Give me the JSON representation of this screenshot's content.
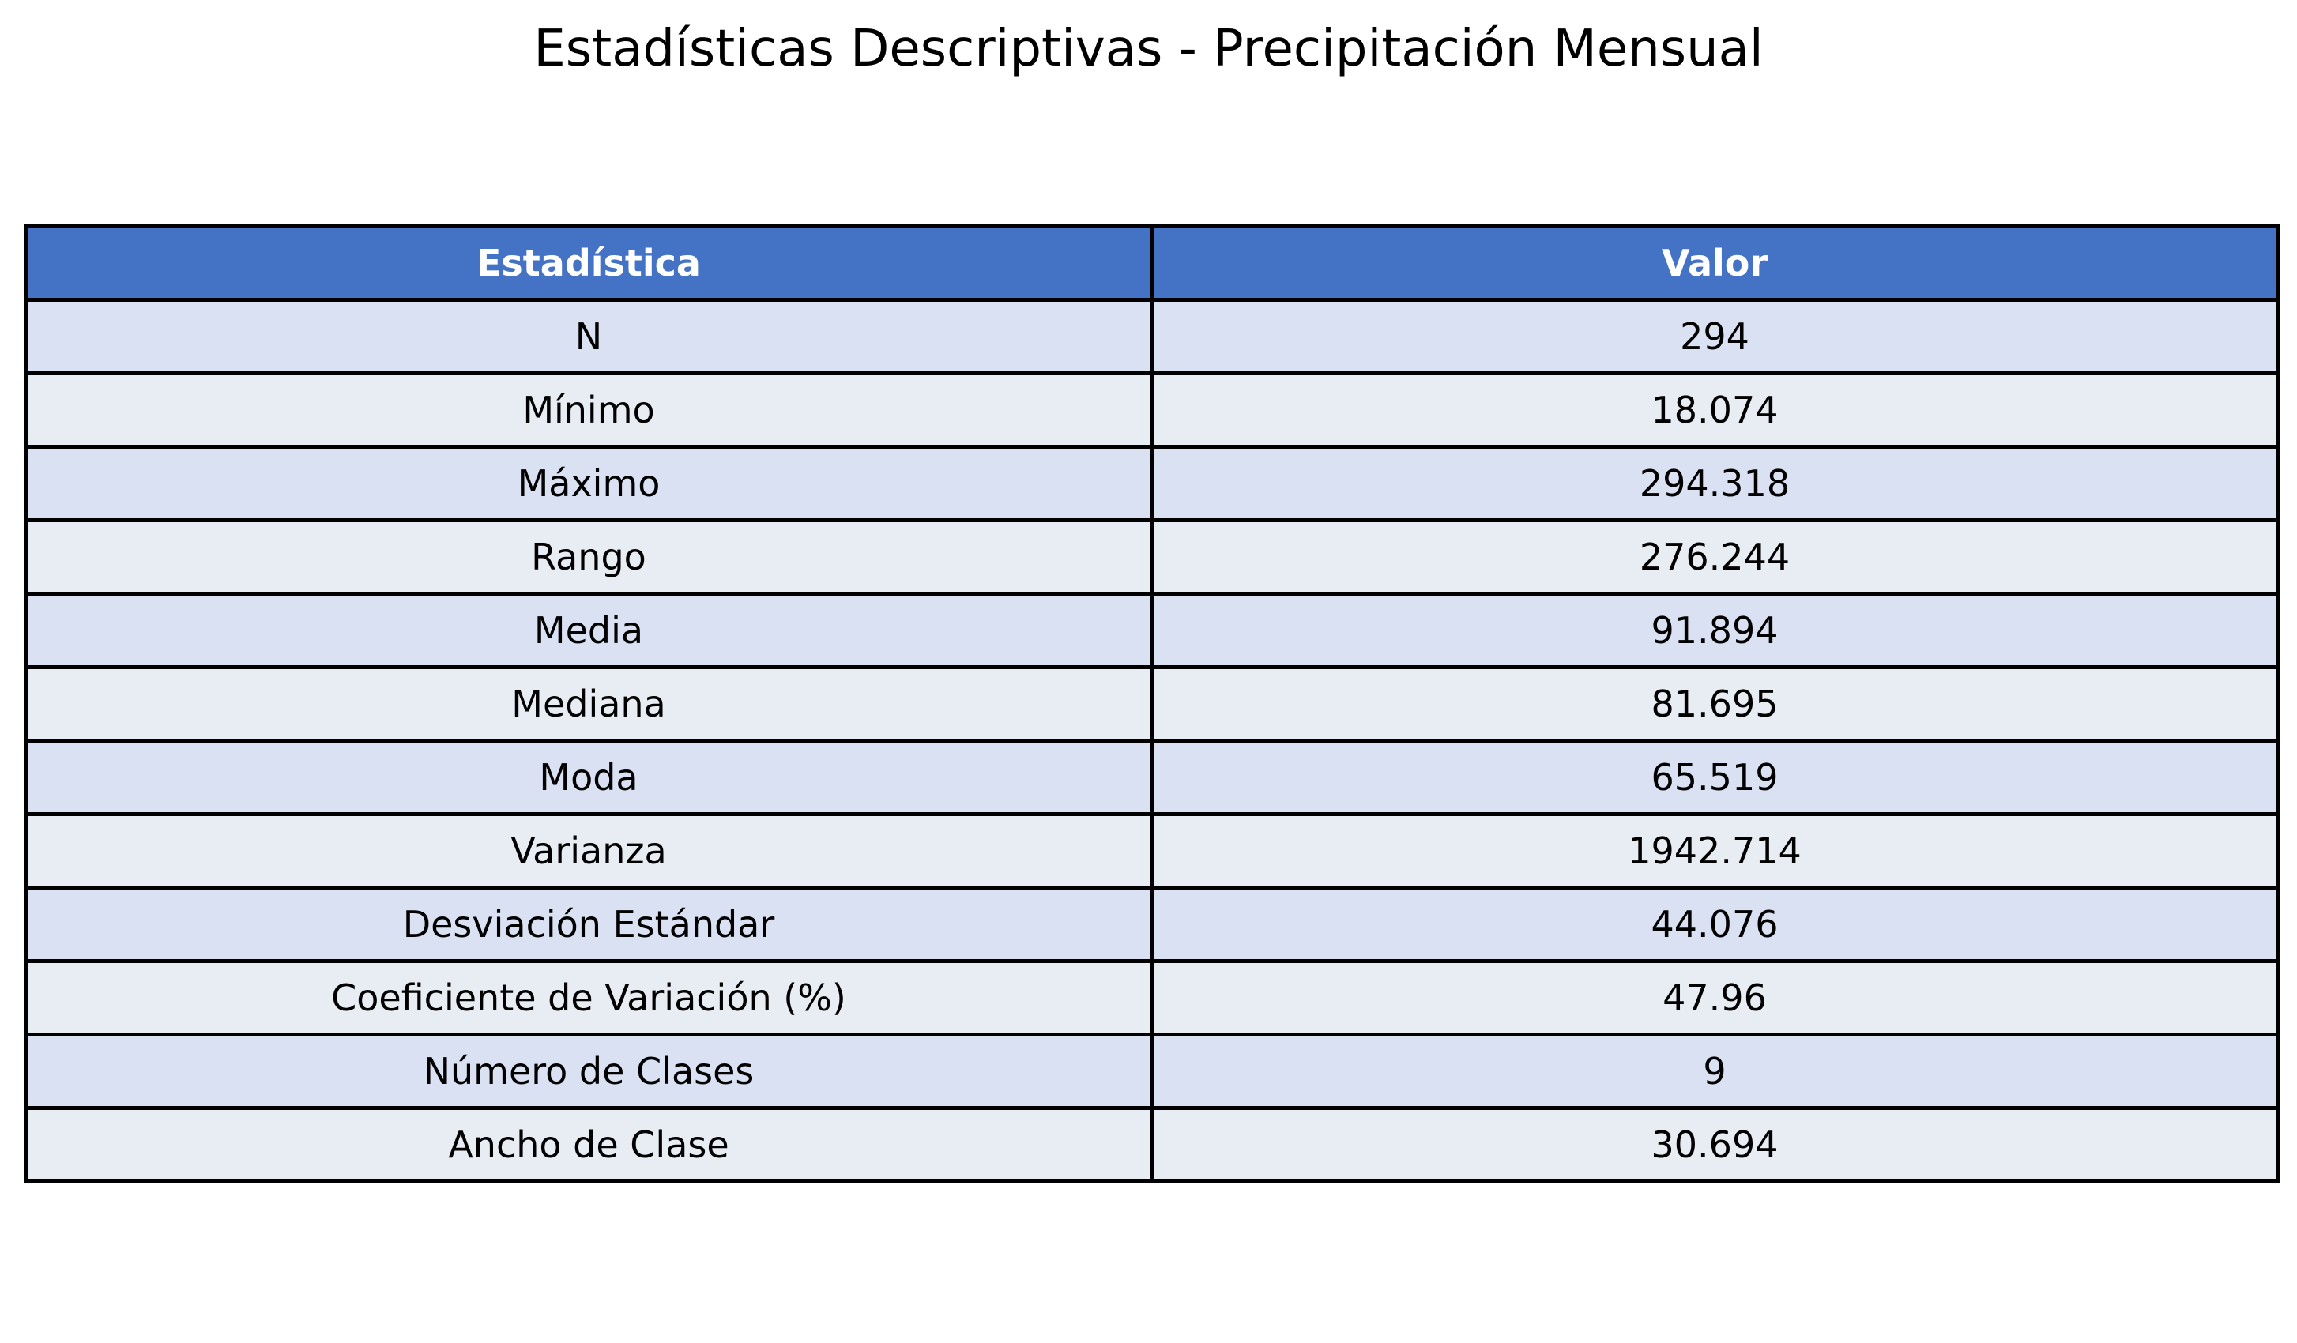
{
  "title": "Estadísticas Descriptivas - Precipitación Mensual",
  "colors": {
    "header_bg": "#4472C4",
    "header_text": "#FFFFFF",
    "row_odd": "#DAE1F2",
    "row_even": "#E8EDF4",
    "grid": "#000000"
  },
  "chart_data": {
    "type": "table",
    "title": "Estadísticas Descriptivas - Precipitación Mensual",
    "columns": [
      "Estadística",
      "Valor"
    ],
    "rows": [
      [
        "N",
        "294"
      ],
      [
        "Mínimo",
        "18.074"
      ],
      [
        "Máximo",
        "294.318"
      ],
      [
        "Rango",
        "276.244"
      ],
      [
        "Media",
        "91.894"
      ],
      [
        "Mediana",
        "81.695"
      ],
      [
        "Moda",
        "65.519"
      ],
      [
        "Varianza",
        "1942.714"
      ],
      [
        "Desviación Estándar",
        "44.076"
      ],
      [
        "Coeficiente de Variación (%)",
        "47.96"
      ],
      [
        "Número de Clases",
        "9"
      ],
      [
        "Ancho de Clase",
        "30.694"
      ]
    ]
  }
}
